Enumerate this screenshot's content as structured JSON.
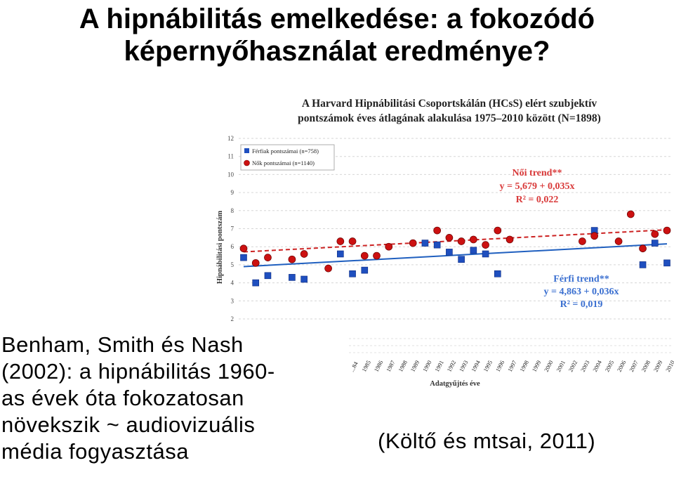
{
  "slide": {
    "title_line1": "A hipnábilitás emelkedése: a fokozódó",
    "title_line2": "képernyőhasználat eredménye?",
    "caption_lines": [
      "Benham, Smith és Nash",
      "(2002): a hipnábilitás 1960-",
      "as évek óta fokozatosan",
      "növekszik ~ audiovizuális",
      "média fogyasztása"
    ],
    "citation": "(Költő és mtsai, 2011)"
  },
  "chart_data": {
    "type": "scatter",
    "title_line1": "A Harvard Hipnábilitási Csoportskálán (HCsS) elért szubjektív",
    "title_line2": "pontszámok éves átlagának alakulása 1975–2010 között (N=1898)",
    "ylabel": "Hipnábilitási pontszám",
    "xlabel": "Adatgyűjtés éve",
    "ylim": [
      2,
      12
    ],
    "yticks": [
      2,
      3,
      4,
      5,
      6,
      7,
      8,
      9,
      10,
      11,
      12
    ],
    "x_tick_labels": [
      "...84",
      "1985",
      "1986",
      "1987",
      "1988",
      "1989",
      "1990",
      "1991",
      "1992",
      "1993",
      "1994",
      "1995",
      "1996",
      "1997",
      "1998",
      "1999",
      "2000",
      "2001",
      "2002",
      "2003",
      "2004",
      "2005",
      "2006",
      "2007",
      "2008",
      "2009",
      "2010"
    ],
    "legend": [
      "Férfiak pontszámai (n=758)",
      "Nők pontszámai (n=1140)"
    ],
    "series": [
      {
        "name": "Férfiak pontszámai (n=758)",
        "color": "#1f4fbf",
        "marker": "square",
        "x": [
          1975,
          1976,
          1977,
          1979,
          1980,
          1983,
          1984,
          1985,
          1990,
          1991,
          1992,
          1993,
          1994,
          1995,
          1996,
          2004,
          2008,
          2009,
          2010
        ],
        "y": [
          5.4,
          4.0,
          4.4,
          4.3,
          4.2,
          5.6,
          4.5,
          4.7,
          6.2,
          6.1,
          5.7,
          5.3,
          5.8,
          5.6,
          4.5,
          6.9,
          5.0,
          6.2,
          5.1
        ]
      },
      {
        "name": "Nők pontszámai (n=1140)",
        "color": "#cc1111",
        "marker": "circle",
        "x": [
          1975,
          1976,
          1977,
          1979,
          1980,
          1982,
          1983,
          1984,
          1985,
          1986,
          1987,
          1989,
          1991,
          1992,
          1993,
          1994,
          1995,
          1996,
          1997,
          2003,
          2004,
          2006,
          2007,
          2008,
          2009,
          2010
        ],
        "y": [
          5.9,
          5.1,
          5.4,
          5.3,
          5.6,
          4.8,
          6.3,
          6.3,
          5.5,
          5.5,
          6.0,
          6.2,
          6.9,
          6.5,
          6.3,
          6.4,
          6.1,
          6.9,
          6.4,
          6.3,
          6.6,
          6.3,
          7.8,
          5.9,
          6.7,
          6.9
        ]
      }
    ],
    "trend_female": {
      "label": "Női trend**",
      "equation": "y = 5,679 + 0,035x",
      "r2": "R² = 0,022",
      "color": "#cc1111",
      "y_start": 5.714,
      "y_end": 6.939
    },
    "trend_male": {
      "label": "Férfi trend**",
      "equation": "y = 4,863 + 0,036x",
      "r2": "R² = 0,019",
      "color": "#1f4fbf",
      "y_start": 4.899,
      "y_end": 6.159
    }
  }
}
